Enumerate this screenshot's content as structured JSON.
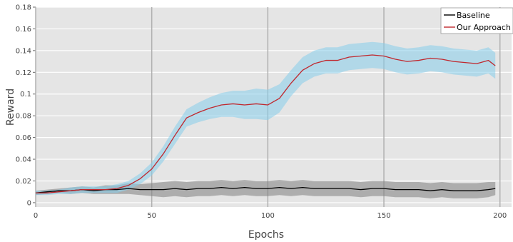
{
  "chart_data": {
    "type": "line",
    "title": "",
    "xlabel": "Epochs",
    "ylabel": "Reward",
    "xlim": [
      0,
      205
    ],
    "ylim": [
      -0.004,
      0.18
    ],
    "xticks": [
      0,
      50,
      100,
      150,
      200
    ],
    "yticks": [
      0,
      0.02,
      0.04,
      0.06,
      0.08,
      0.1,
      0.12,
      0.14,
      0.16,
      0.18
    ],
    "ytick_labels": [
      "0",
      "0.02",
      "0.04",
      "0.06",
      "0.08",
      "0.1",
      "0.12",
      "0.14",
      "0.16",
      "0.18"
    ],
    "grid": true,
    "background": "#e5e5e5",
    "legend_position": "top-right",
    "x": [
      0,
      5,
      10,
      15,
      20,
      25,
      30,
      35,
      40,
      45,
      50,
      55,
      60,
      65,
      70,
      75,
      80,
      85,
      90,
      95,
      100,
      105,
      110,
      115,
      120,
      125,
      130,
      135,
      140,
      145,
      150,
      155,
      160,
      165,
      170,
      175,
      180,
      185,
      190,
      195,
      198
    ],
    "series": [
      {
        "name": "Baseline",
        "color": "#000000",
        "band_color": "#808080",
        "values": [
          0.009,
          0.01,
          0.011,
          0.011,
          0.012,
          0.011,
          0.012,
          0.012,
          0.013,
          0.012,
          0.012,
          0.012,
          0.013,
          0.012,
          0.013,
          0.013,
          0.014,
          0.013,
          0.014,
          0.013,
          0.013,
          0.014,
          0.013,
          0.014,
          0.013,
          0.013,
          0.013,
          0.013,
          0.012,
          0.013,
          0.013,
          0.012,
          0.012,
          0.012,
          0.011,
          0.012,
          0.011,
          0.011,
          0.011,
          0.012,
          0.013
        ],
        "band_half_width": [
          0.002,
          0.002,
          0.002,
          0.003,
          0.003,
          0.003,
          0.004,
          0.004,
          0.005,
          0.005,
          0.006,
          0.007,
          0.007,
          0.007,
          0.007,
          0.007,
          0.007,
          0.007,
          0.007,
          0.007,
          0.007,
          0.007,
          0.007,
          0.007,
          0.007,
          0.007,
          0.007,
          0.007,
          0.007,
          0.007,
          0.007,
          0.007,
          0.007,
          0.007,
          0.007,
          0.007,
          0.007,
          0.007,
          0.007,
          0.007,
          0.006
        ]
      },
      {
        "name": "Our Approach",
        "color": "#c0272d",
        "band_color": "#87ceeb",
        "values": [
          0.009,
          0.009,
          0.01,
          0.011,
          0.012,
          0.012,
          0.012,
          0.013,
          0.016,
          0.022,
          0.031,
          0.045,
          0.062,
          0.078,
          0.083,
          0.087,
          0.09,
          0.091,
          0.09,
          0.091,
          0.09,
          0.096,
          0.11,
          0.122,
          0.128,
          0.131,
          0.131,
          0.134,
          0.135,
          0.136,
          0.135,
          0.132,
          0.13,
          0.131,
          0.133,
          0.132,
          0.13,
          0.129,
          0.128,
          0.131,
          0.126
        ],
        "band_half_width": [
          0.002,
          0.002,
          0.002,
          0.003,
          0.003,
          0.003,
          0.003,
          0.004,
          0.004,
          0.005,
          0.006,
          0.007,
          0.008,
          0.008,
          0.009,
          0.01,
          0.011,
          0.012,
          0.013,
          0.014,
          0.014,
          0.013,
          0.012,
          0.012,
          0.012,
          0.012,
          0.012,
          0.012,
          0.012,
          0.012,
          0.012,
          0.012,
          0.012,
          0.012,
          0.012,
          0.012,
          0.012,
          0.012,
          0.012,
          0.012,
          0.012
        ]
      }
    ]
  }
}
